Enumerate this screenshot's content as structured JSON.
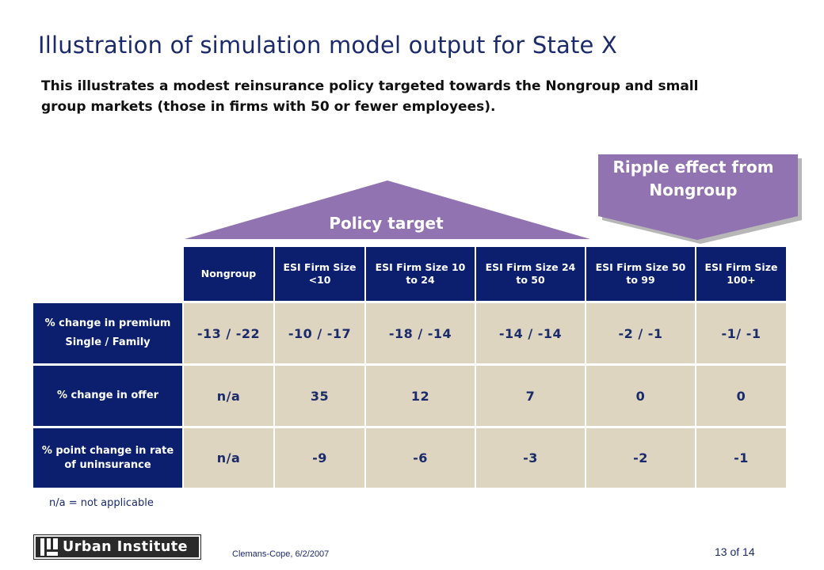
{
  "slide": {
    "title": "Illustration of simulation model output for State X",
    "subtitle": "This illustrates a modest reinsurance policy targeted towards the Nongroup and small group markets (those in firms with 50 or fewer employees).",
    "colors": {
      "navy": "#0b1f6e",
      "tan": "#ddd5bf",
      "purple": "#9073b0",
      "title_blue": "#1b2a6b"
    }
  },
  "callouts": {
    "policy_target": "Policy target",
    "ripple_effect": "Ripple effect from Nongroup"
  },
  "table": {
    "columns": [
      "Nongroup",
      "ESI Firm Size <10",
      "ESI Firm Size 10 to 24",
      "ESI Firm Size 24 to 50",
      "ESI Firm Size 50 to 99",
      "ESI Firm Size 100+"
    ],
    "rows": [
      {
        "label_line1": "% change in premium",
        "label_line2": "Single / Family",
        "values": [
          "-13 / -22",
          "-10 / -17",
          "-18 / -14",
          "-14 / -14",
          "-2 / -1",
          "-1/ -1"
        ]
      },
      {
        "label_line1": "% change in offer",
        "values": [
          "n/a",
          "35",
          "12",
          "7",
          "0",
          "0"
        ]
      },
      {
        "label_line1": "% point change in rate of uninsurance",
        "values": [
          "n/a",
          "-9",
          "-6",
          "-3",
          "-2",
          "-1"
        ]
      }
    ]
  },
  "note": "n/a = not applicable",
  "footer": {
    "logo_text": "Urban Institute",
    "author_date": "Clemans-Cope, 6/2/2007",
    "page_number": "13 of 14"
  }
}
